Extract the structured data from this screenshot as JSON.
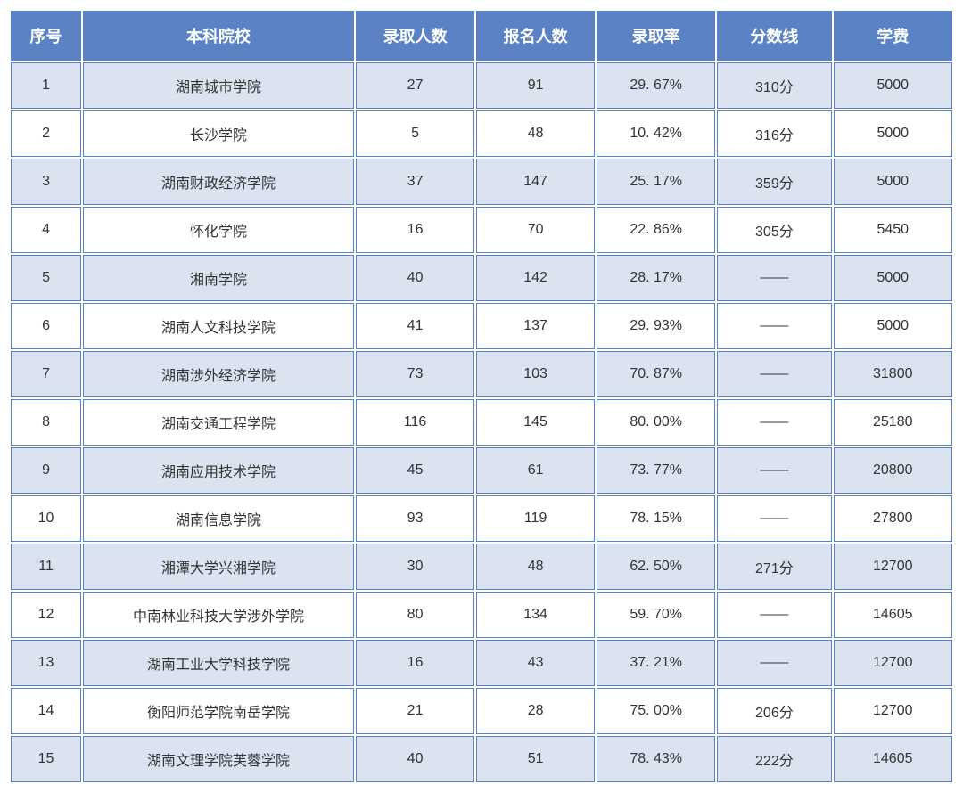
{
  "table": {
    "columns": [
      "序号",
      "本科院校",
      "录取人数",
      "报名人数",
      "录取率",
      "分数线",
      "学费"
    ],
    "rows": [
      {
        "seq": "1",
        "school": "湖南城市学院",
        "admitted": "27",
        "applied": "91",
        "rate": "29. 67%",
        "score": "310分",
        "fee": "5000"
      },
      {
        "seq": "2",
        "school": "长沙学院",
        "admitted": "5",
        "applied": "48",
        "rate": "10. 42%",
        "score": "316分",
        "fee": "5000"
      },
      {
        "seq": "3",
        "school": "湖南财政经济学院",
        "admitted": "37",
        "applied": "147",
        "rate": "25. 17%",
        "score": "359分",
        "fee": "5000"
      },
      {
        "seq": "4",
        "school": "怀化学院",
        "admitted": "16",
        "applied": "70",
        "rate": "22. 86%",
        "score": "305分",
        "fee": "5450"
      },
      {
        "seq": "5",
        "school": "湘南学院",
        "admitted": "40",
        "applied": "142",
        "rate": "28. 17%",
        "score": "——",
        "fee": "5000"
      },
      {
        "seq": "6",
        "school": "湖南人文科技学院",
        "admitted": "41",
        "applied": "137",
        "rate": "29. 93%",
        "score": "——",
        "fee": "5000"
      },
      {
        "seq": "7",
        "school": "湖南涉外经济学院",
        "admitted": "73",
        "applied": "103",
        "rate": "70. 87%",
        "score": "——",
        "fee": "31800"
      },
      {
        "seq": "8",
        "school": "湖南交通工程学院",
        "admitted": "116",
        "applied": "145",
        "rate": "80. 00%",
        "score": "——",
        "fee": "25180"
      },
      {
        "seq": "9",
        "school": "湖南应用技术学院",
        "admitted": "45",
        "applied": "61",
        "rate": "73. 77%",
        "score": "——",
        "fee": "20800"
      },
      {
        "seq": "10",
        "school": "湖南信息学院",
        "admitted": "93",
        "applied": "119",
        "rate": "78. 15%",
        "score": "——",
        "fee": "27800"
      },
      {
        "seq": "11",
        "school": "湘潭大学兴湘学院",
        "admitted": "30",
        "applied": "48",
        "rate": "62. 50%",
        "score": "271分",
        "fee": "12700"
      },
      {
        "seq": "12",
        "school": "中南林业科技大学涉外学院",
        "admitted": "80",
        "applied": "134",
        "rate": "59. 70%",
        "score": "——",
        "fee": "14605"
      },
      {
        "seq": "13",
        "school": "湖南工业大学科技学院",
        "admitted": "16",
        "applied": "43",
        "rate": "37. 21%",
        "score": "——",
        "fee": "12700"
      },
      {
        "seq": "14",
        "school": "衡阳师范学院南岳学院",
        "admitted": "21",
        "applied": "28",
        "rate": "75. 00%",
        "score": "206分",
        "fee": "12700"
      },
      {
        "seq": "15",
        "school": "湖南文理学院芙蓉学院",
        "admitted": "40",
        "applied": "51",
        "rate": "78. 43%",
        "score": "222分",
        "fee": "14605"
      }
    ],
    "header_bg": "#5b82c4",
    "header_text": "#ffffff",
    "row_odd_bg": "#dbe3f1",
    "row_even_bg": "#ffffff",
    "border_color": "#5b82c4",
    "cell_text_color": "#333333"
  }
}
